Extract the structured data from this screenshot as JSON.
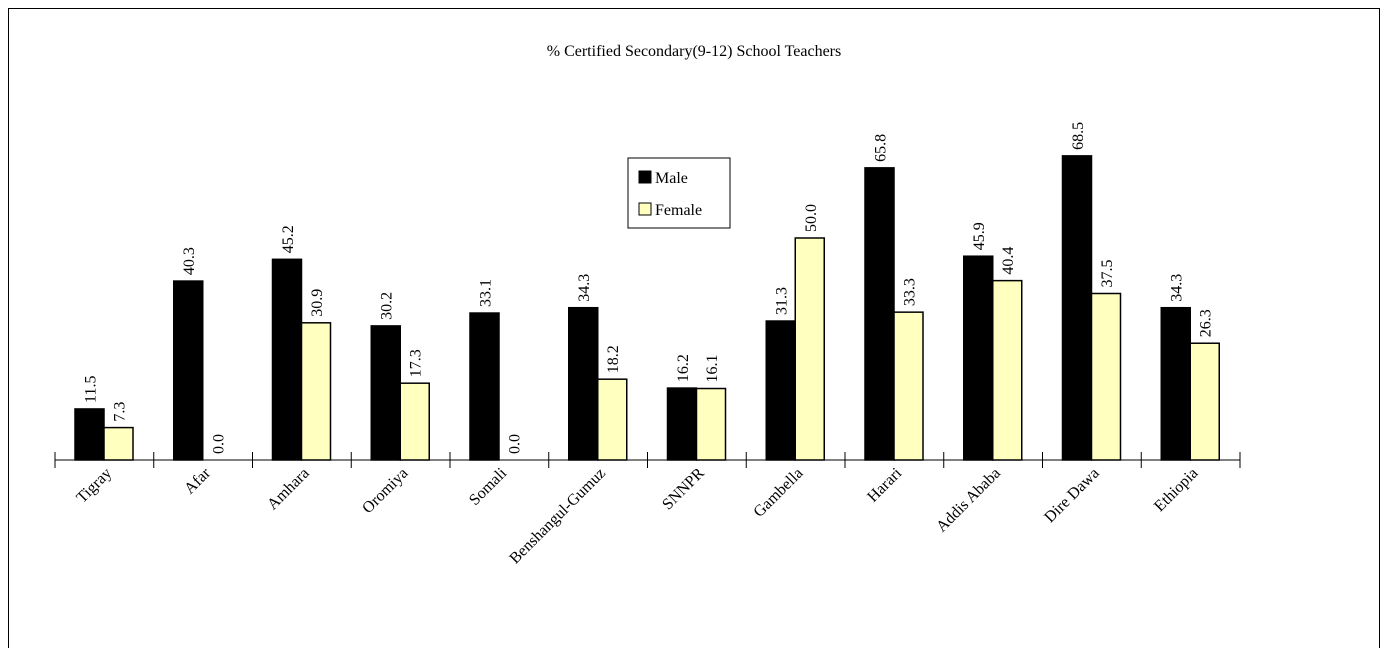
{
  "chart_data": {
    "type": "bar",
    "title": "% Certified Secondary(9-12) School Teachers",
    "categories": [
      "Tigray",
      "Afar",
      "Amhara",
      "Oromiya",
      "Somali",
      "Benshangul-Gumuz",
      "SNNPR",
      "Gambella",
      "Harari",
      "Addis Ababa",
      "Dire Dawa",
      "Ethiopia"
    ],
    "series": [
      {
        "name": "Male",
        "color": "#000000",
        "values": [
          11.5,
          40.3,
          45.2,
          30.2,
          33.1,
          34.3,
          16.2,
          31.3,
          65.8,
          45.9,
          68.5,
          34.3
        ],
        "value_labels": [
          "11.5",
          "40.3",
          "45.2",
          "30.2",
          "33.1",
          "34.3",
          "16.2",
          "31.3",
          "65.8",
          "45.9",
          "68.5",
          "34.3"
        ]
      },
      {
        "name": "Female",
        "color": "#ffffc0",
        "values": [
          7.3,
          0,
          30.9,
          17.3,
          0,
          18.2,
          16.1,
          50,
          33.3,
          40.4,
          37.5,
          26.3
        ],
        "value_labels": [
          "7.3",
          "0.0",
          "30.9",
          "17.3",
          "0.0",
          "18.2",
          "16.1",
          "50.0",
          "33.3",
          "40.4",
          "37.5",
          "26.3"
        ]
      }
    ],
    "ylim": [
      0,
      75
    ],
    "legend": "center"
  }
}
